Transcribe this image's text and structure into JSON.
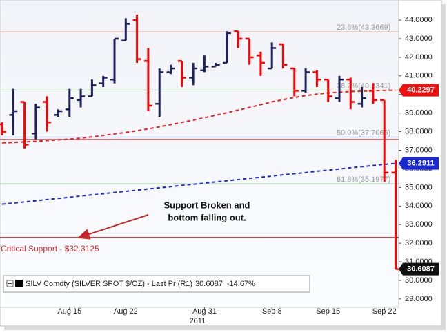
{
  "chart_data": {
    "type": "ohlc",
    "categories": [
      null,
      null,
      null,
      null,
      null,
      null,
      "Aug 15",
      null,
      null,
      null,
      null,
      "Aug 22",
      null,
      null,
      null,
      null,
      null,
      null,
      "Aug 31",
      null,
      null,
      null,
      null,
      null,
      "Sep 8",
      null,
      null,
      null,
      null,
      "Sep 15",
      null,
      null,
      null,
      null,
      "Sep 22",
      null
    ],
    "year_label": "2011",
    "open": [
      38.4,
      38.9,
      39.6,
      37.9,
      39.6,
      38.9,
      39.2,
      39.7,
      39.9,
      40.6,
      40.8,
      42.9,
      44.0,
      41.8,
      39.5,
      41.2,
      41.8,
      40.9,
      41.3,
      41.5,
      41.7,
      43.4,
      43.0,
      42.1,
      41.4,
      42.7,
      41.4,
      40.2,
      41.2,
      40.8,
      39.8,
      40.8,
      39.5,
      40.2,
      39.7,
      35.8
    ],
    "high": [
      38.5,
      40.3,
      39.6,
      39.5,
      39.9,
      39.2,
      40.3,
      40.3,
      40.8,
      41.0,
      43.0,
      44.1,
      44.3,
      42.5,
      41.4,
      41.6,
      41.8,
      41.7,
      42.1,
      41.7,
      43.4,
      43.4,
      43.0,
      42.3,
      42.8,
      42.7,
      41.4,
      41.4,
      41.3,
      40.8,
      41.0,
      40.9,
      40.4,
      40.6,
      39.7,
      36.5
    ],
    "low": [
      37.8,
      37.8,
      37.1,
      37.6,
      38.0,
      38.8,
      38.8,
      39.3,
      39.9,
      40.4,
      40.6,
      42.9,
      41.7,
      39.1,
      38.8,
      41.1,
      40.4,
      40.5,
      41.2,
      41.5,
      41.7,
      42.5,
      41.6,
      41.0,
      41.4,
      41.4,
      39.9,
      40.1,
      40.4,
      39.6,
      39.6,
      39.2,
      39.3,
      39.5,
      35.3,
      30.6
    ],
    "close": [
      38.0,
      39.1,
      37.3,
      39.3,
      38.5,
      39.1,
      39.8,
      39.9,
      40.5,
      40.9,
      43.0,
      43.8,
      41.9,
      39.4,
      41.2,
      41.4,
      40.9,
      41.4,
      41.5,
      41.6,
      43.3,
      43.0,
      42.0,
      41.7,
      42.5,
      41.6,
      40.2,
      41.2,
      40.8,
      39.9,
      40.8,
      39.6,
      39.8,
      39.7,
      35.8,
      30.6087
    ],
    "up_color": "#1c2160",
    "down_color": "#ff0000",
    "ylim": [
      28.55,
      45.08
    ],
    "yticks": [
      {
        "value": 29,
        "label": "29.0000"
      },
      {
        "value": 30,
        "label": "30.0000"
      },
      {
        "value": 31,
        "label": "31.0000"
      },
      {
        "value": 32,
        "label": "32.0000"
      },
      {
        "value": 33,
        "label": "33.0000"
      },
      {
        "value": 34,
        "label": "34.0000"
      },
      {
        "value": 35,
        "label": "35.0000"
      },
      {
        "value": 36,
        "label": "36.0000"
      },
      {
        "value": 37,
        "label": "37.0000"
      },
      {
        "value": 38,
        "label": "38.0000"
      },
      {
        "value": 39,
        "label": "39.0000"
      },
      {
        "value": 40,
        "label": "40.0000"
      },
      {
        "value": 41,
        "label": "41.0000"
      },
      {
        "value": 42,
        "label": "42.0000"
      },
      {
        "value": 43,
        "label": "43.0000"
      },
      {
        "value": 44,
        "label": "44.0000"
      }
    ],
    "lines": [
      {
        "color": "#ee2222",
        "box_color": "#ee1111",
        "values": [
          37.4,
          37.42,
          37.45,
          37.48,
          37.52,
          37.56,
          37.6,
          37.65,
          37.72,
          37.8,
          37.88,
          37.96,
          38.05,
          38.15,
          38.26,
          38.38,
          38.5,
          38.62,
          38.75,
          38.88,
          39.02,
          39.16,
          39.3,
          39.45,
          39.6,
          39.72,
          39.84,
          39.94,
          40.02,
          40.08,
          40.12,
          40.16,
          40.18,
          40.2,
          40.22,
          40.2297
        ]
      },
      {
        "color": "#1a2ad0",
        "box_color": "#1a2ad0",
        "values": [
          34.1,
          34.16,
          34.22,
          34.28,
          34.35,
          34.41,
          34.47,
          34.54,
          34.6,
          34.66,
          34.73,
          34.79,
          34.85,
          34.92,
          34.98,
          35.04,
          35.11,
          35.17,
          35.23,
          35.3,
          35.36,
          35.42,
          35.49,
          35.55,
          35.61,
          35.68,
          35.74,
          35.8,
          35.87,
          35.93,
          35.99,
          36.06,
          36.12,
          36.18,
          36.24,
          36.2911
        ]
      }
    ],
    "close_box_color": "#111111",
    "hlines": [
      {
        "value": 43.3669,
        "label": "23.6%(43.3669)",
        "color": "#e6b3a3"
      },
      {
        "value": 40.2341,
        "label": "38.2%(40.2341)",
        "color": "#a6d6a6"
      },
      {
        "value": 37.7066,
        "label": "50.0%(37.7066)",
        "color": "#a9c9ee"
      },
      {
        "value": 37.58,
        "color": "#d94040"
      },
      {
        "value": 35.1977,
        "label": "61.8%(35.1977)",
        "color": "#a6d6a6"
      },
      {
        "value": 32.3125,
        "label": "Critical Support - $32.3125",
        "color": "#c82828",
        "label_side": "left",
        "label_color": "#cc2a2a"
      }
    ],
    "annotation": [
      "Support Broken and",
      "bottom falling out."
    ],
    "legend": {
      "name": "SILV Comdty (SILVER SPOT $/OZ) - Last Pr (R1)",
      "change": "-14.67%"
    }
  }
}
